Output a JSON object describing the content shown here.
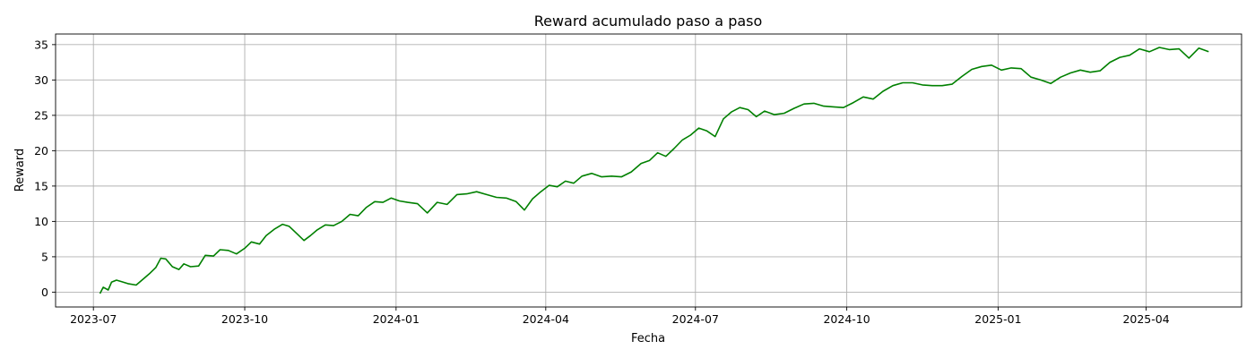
{
  "chart_data": {
    "type": "line",
    "title": "Reward acumulado paso a paso",
    "xlabel": "Fecha",
    "ylabel": "Reward",
    "x_type": "date",
    "xlim": [
      "2023-06-08",
      "2025-05-29"
    ],
    "ylim": [
      -2.1,
      36.5
    ],
    "x_ticks": [
      "2023-07-01",
      "2023-10-01",
      "2024-01-01",
      "2024-04-01",
      "2024-07-01",
      "2024-10-01",
      "2025-01-01",
      "2025-04-01"
    ],
    "x_tick_labels": [
      "2023-07",
      "2023-10",
      "2024-01",
      "2024-04",
      "2024-07",
      "2024-10",
      "2025-01",
      "2025-04"
    ],
    "y_ticks": [
      0,
      5,
      10,
      15,
      20,
      25,
      30,
      35
    ],
    "y_tick_labels": [
      "0",
      "5",
      "10",
      "15",
      "20",
      "25",
      "30",
      "35"
    ],
    "grid": true,
    "colors": {
      "line": "#008000",
      "grid": "#b0b0b0"
    },
    "series": [
      {
        "x": [
          "2023-07-05",
          "2023-07-07",
          "2023-07-10",
          "2023-07-12",
          "2023-07-15",
          "2023-07-18",
          "2023-07-22",
          "2023-07-27",
          "2023-08-01",
          "2023-08-04",
          "2023-08-08",
          "2023-08-11",
          "2023-08-14",
          "2023-08-18",
          "2023-08-22",
          "2023-08-25",
          "2023-08-29",
          "2023-09-03",
          "2023-09-07",
          "2023-09-12",
          "2023-09-16",
          "2023-09-21",
          "2023-09-26",
          "2023-10-01",
          "2023-10-05",
          "2023-10-10",
          "2023-10-14",
          "2023-10-19",
          "2023-10-24",
          "2023-10-28",
          "2023-11-02",
          "2023-11-06",
          "2023-11-10",
          "2023-11-14",
          "2023-11-19",
          "2023-11-24",
          "2023-11-29",
          "2023-12-04",
          "2023-12-09",
          "2023-12-14",
          "2023-12-19",
          "2023-12-24",
          "2023-12-29",
          "2024-01-03",
          "2024-01-08",
          "2024-01-14",
          "2024-01-20",
          "2024-01-26",
          "2024-02-01",
          "2024-02-07",
          "2024-02-13",
          "2024-02-19",
          "2024-02-25",
          "2024-03-02",
          "2024-03-08",
          "2024-03-14",
          "2024-03-19",
          "2024-03-24",
          "2024-03-29",
          "2024-04-03",
          "2024-04-08",
          "2024-04-13",
          "2024-04-18",
          "2024-04-23",
          "2024-04-29",
          "2024-05-05",
          "2024-05-11",
          "2024-05-17",
          "2024-05-23",
          "2024-05-29",
          "2024-06-03",
          "2024-06-08",
          "2024-06-13",
          "2024-06-18",
          "2024-06-23",
          "2024-06-28",
          "2024-07-03",
          "2024-07-08",
          "2024-07-13",
          "2024-07-18",
          "2024-07-23",
          "2024-07-28",
          "2024-08-02",
          "2024-08-07",
          "2024-08-12",
          "2024-08-18",
          "2024-08-24",
          "2024-08-30",
          "2024-09-05",
          "2024-09-11",
          "2024-09-17",
          "2024-09-23",
          "2024-09-29",
          "2024-10-05",
          "2024-10-11",
          "2024-10-17",
          "2024-10-23",
          "2024-10-29",
          "2024-11-04",
          "2024-11-10",
          "2024-11-16",
          "2024-11-22",
          "2024-11-28",
          "2024-12-04",
          "2024-12-10",
          "2024-12-16",
          "2024-12-22",
          "2024-12-28",
          "2025-01-03",
          "2025-01-09",
          "2025-01-15",
          "2025-01-21",
          "2025-01-27",
          "2025-02-02",
          "2025-02-08",
          "2025-02-14",
          "2025-02-20",
          "2025-02-26",
          "2025-03-04",
          "2025-03-10",
          "2025-03-16",
          "2025-03-22",
          "2025-03-28",
          "2025-04-03",
          "2025-04-09",
          "2025-04-15",
          "2025-04-21",
          "2025-04-27",
          "2025-05-03",
          "2025-05-09"
        ],
        "y": [
          -0.2,
          0.7,
          0.3,
          1.4,
          1.7,
          1.5,
          1.2,
          1.0,
          2.0,
          2.6,
          3.5,
          4.8,
          4.7,
          3.6,
          3.2,
          4.0,
          3.6,
          3.7,
          5.2,
          5.1,
          6.0,
          5.9,
          5.4,
          6.2,
          7.1,
          6.8,
          8.0,
          8.9,
          9.6,
          9.3,
          8.2,
          7.3,
          8.0,
          8.8,
          9.5,
          9.4,
          10.0,
          11.0,
          10.8,
          12.0,
          12.8,
          12.7,
          13.3,
          12.9,
          12.7,
          12.5,
          11.2,
          12.7,
          12.4,
          13.8,
          13.9,
          14.2,
          13.8,
          13.4,
          13.3,
          12.8,
          11.6,
          13.2,
          14.2,
          15.1,
          14.9,
          15.7,
          15.4,
          16.4,
          16.8,
          16.3,
          16.4,
          16.3,
          17.0,
          18.2,
          18.6,
          19.7,
          19.2,
          20.3,
          21.5,
          22.2,
          23.2,
          22.8,
          22.0,
          24.5,
          25.5,
          26.1,
          25.8,
          24.8,
          25.6,
          25.1,
          25.3,
          26.0,
          26.6,
          26.7,
          26.3,
          26.2,
          26.1,
          26.8,
          27.6,
          27.3,
          28.4,
          29.2,
          29.6,
          29.6,
          29.3,
          29.2,
          29.2,
          29.4,
          30.5,
          31.5,
          31.9,
          32.1,
          31.4,
          31.7,
          31.6,
          30.4,
          30.0,
          29.5,
          30.4,
          31.0,
          31.4,
          31.1,
          31.3,
          32.5,
          33.2,
          33.5,
          34.4,
          34.0,
          34.6,
          34.3,
          34.4,
          33.1,
          34.5,
          34.0
        ]
      }
    ]
  }
}
